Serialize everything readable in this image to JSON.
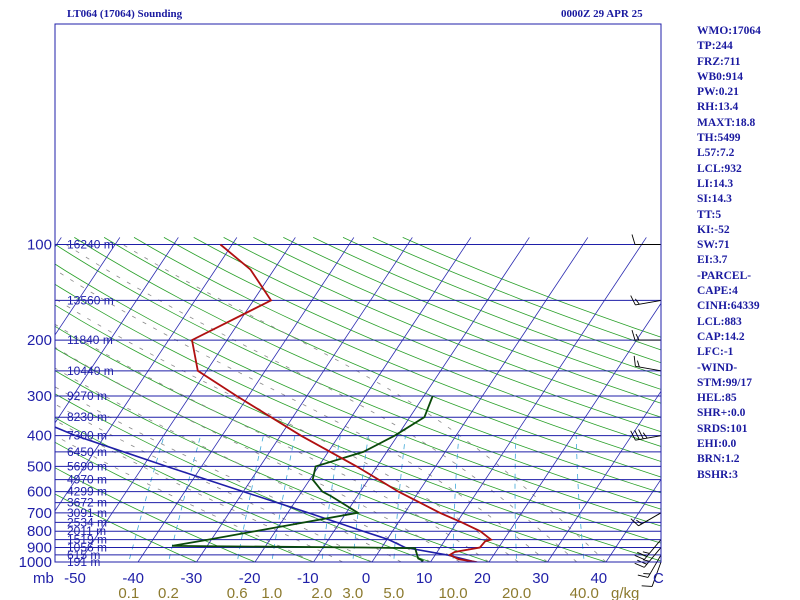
{
  "header": {
    "title": "LT064 (17064) Sounding",
    "valid_time": "0000Z 29 APR 25"
  },
  "stats": [
    "WMO:17064",
    "TP:244",
    "FRZ:711",
    "WB0:914",
    "PW:0.21",
    "RH:13.4",
    "MAXT:18.8",
    "TH:5499",
    "L57:7.2",
    "LCL:932",
    "LI:14.3",
    "SI:14.3",
    "TT:5",
    "KI:-52",
    "SW:71",
    "EI:3.7",
    "-PARCEL-",
    "CAPE:4",
    "CINH:64339",
    "LCL:883",
    "CAP:14.2",
    "LFC:-1",
    "-WIND-",
    "STM:99/17",
    "HEL:85",
    "SHR+:0.0",
    "SRDS:101",
    "EHI:0.0",
    "BRN:1.2",
    "BSHR:3"
  ],
  "colors": {
    "frame": "#1f1fa8",
    "isobar": "#1f1fa8",
    "isotherm": "#2a2ab0",
    "dry_adiabat": "#2aa02a",
    "moist_adiabat": "#8a8a8a",
    "mixing_ratio": "#3fa8d8",
    "temperature": "#b01010",
    "dewpoint": "#0a4a0a",
    "parcel": "#1f1fa8",
    "mixing_ratio_label": "#8c7a2e"
  },
  "chart_data": {
    "type": "skew-t log-p sounding",
    "x_axis_label": "C",
    "y_axis_label": "mb",
    "mixing_ratio_unit": "g/kg",
    "temperature_range": [
      -50,
      50
    ],
    "pressure_range": [
      1000,
      100
    ],
    "pressure_ticks": [
      100,
      200,
      300,
      400,
      500,
      600,
      700,
      800,
      900,
      1000
    ],
    "temperature_ticks": [
      -50,
      -40,
      -30,
      -20,
      -10,
      0,
      10,
      20,
      30,
      40
    ],
    "temperature_tick_labels": [
      "-50",
      "-40",
      "-30",
      "-20",
      "-10",
      "0",
      "10",
      "20",
      "30",
      "40"
    ],
    "mixing_ratio_labels": [
      "0.1",
      "0.2",
      "0.6",
      "1.0",
      "2.0",
      "3.0",
      "5.0",
      "10.0",
      "20.0",
      "40.0"
    ],
    "mixing_ratio_values": [
      0.1,
      0.2,
      0.6,
      1.0,
      2.0,
      3.0,
      5.0,
      10.0,
      20.0,
      40.0
    ],
    "height_levels": [
      {
        "p": 100,
        "label": "16240 m"
      },
      {
        "p": 150,
        "label": "13560 m"
      },
      {
        "p": 200,
        "label": "11840 m"
      },
      {
        "p": 250,
        "label": "10440 m"
      },
      {
        "p": 300,
        "label": "9270 m"
      },
      {
        "p": 350,
        "label": "8230 m"
      },
      {
        "p": 400,
        "label": "7300 m"
      },
      {
        "p": 450,
        "label": "6450 m"
      },
      {
        "p": 500,
        "label": "5690 m"
      },
      {
        "p": 550,
        "label": "4970 m"
      },
      {
        "p": 600,
        "label": "4299 m"
      },
      {
        "p": 650,
        "label": "3672 m"
      },
      {
        "p": 700,
        "label": "3091 m"
      },
      {
        "p": 750,
        "label": "2534 m"
      },
      {
        "p": 800,
        "label": "2011 m"
      },
      {
        "p": 850,
        "label": "1519 m"
      },
      {
        "p": 900,
        "label": "1056 m"
      },
      {
        "p": 950,
        "label": "615 m"
      },
      {
        "p": 1000,
        "label": "191 m"
      }
    ],
    "temperature": [
      {
        "p": 1010,
        "t": 18.8
      },
      {
        "p": 1000,
        "t": 17.8
      },
      {
        "p": 980,
        "t": 14.5
      },
      {
        "p": 950,
        "t": 12.5
      },
      {
        "p": 930,
        "t": 13.0
      },
      {
        "p": 900,
        "t": 16.8
      },
      {
        "p": 860,
        "t": 17.0
      },
      {
        "p": 850,
        "t": 17.8
      },
      {
        "p": 800,
        "t": 15.0
      },
      {
        "p": 750,
        "t": 10.8
      },
      {
        "p": 700,
        "t": 6.0
      },
      {
        "p": 600,
        "t": -3.5
      },
      {
        "p": 500,
        "t": -13.5
      },
      {
        "p": 400,
        "t": -26.5
      },
      {
        "p": 300,
        "t": -42.0
      },
      {
        "p": 250,
        "t": -51.5
      },
      {
        "p": 200,
        "t": -56.0
      },
      {
        "p": 150,
        "t": -47.0
      },
      {
        "p": 120,
        "t": -54.0
      },
      {
        "p": 100,
        "t": -62.0
      }
    ],
    "dewpoint": [
      {
        "p": 1010,
        "t": 8.5
      },
      {
        "p": 990,
        "t": 8.5
      },
      {
        "p": 975,
        "t": 7.5
      },
      {
        "p": 905,
        "t": 5.8
      },
      {
        "p": 900,
        "t": -3.0
      },
      {
        "p": 890,
        "t": -36.0
      },
      {
        "p": 850,
        "t": -30.5
      },
      {
        "p": 800,
        "t": -23.5
      },
      {
        "p": 700,
        "t": -8.0
      },
      {
        "p": 620,
        "t": -14.5
      },
      {
        "p": 600,
        "t": -16.5
      },
      {
        "p": 550,
        "t": -19.5
      },
      {
        "p": 500,
        "t": -20.5
      },
      {
        "p": 450,
        "t": -14.0
      },
      {
        "p": 400,
        "t": -10.5
      },
      {
        "p": 350,
        "t": -7.5
      },
      {
        "p": 300,
        "t": -8.5
      }
    ],
    "parcel": [
      {
        "p": 1010,
        "t": 18.8
      },
      {
        "p": 950,
        "t": 12.0
      },
      {
        "p": 900,
        "t": 4.0
      },
      {
        "p": 850,
        "t": 0.3
      },
      {
        "p": 800,
        "t": -5.0
      },
      {
        "p": 700,
        "t": -16.5
      },
      {
        "p": 600,
        "t": -30.0
      },
      {
        "p": 500,
        "t": -46.0
      },
      {
        "p": 400,
        "t": -65.0
      },
      {
        "p": 300,
        "t": -86.0
      },
      {
        "p": 200,
        "t": -112.0
      },
      {
        "p": 120,
        "t": -150.0
      }
    ],
    "wind_barbs": [
      {
        "p": 100,
        "dir": 270,
        "speed": 10
      },
      {
        "p": 150,
        "dir": 260,
        "speed": 15
      },
      {
        "p": 200,
        "dir": 270,
        "speed": 15
      },
      {
        "p": 250,
        "dir": 280,
        "speed": 15
      },
      {
        "p": 400,
        "dir": 260,
        "speed": 35
      },
      {
        "p": 700,
        "dir": 240,
        "speed": 15
      },
      {
        "p": 850,
        "dir": 220,
        "speed": 25
      },
      {
        "p": 900,
        "dir": 220,
        "speed": 25
      },
      {
        "p": 950,
        "dir": 210,
        "speed": 15
      },
      {
        "p": 1000,
        "dir": 200,
        "speed": 10
      }
    ]
  }
}
